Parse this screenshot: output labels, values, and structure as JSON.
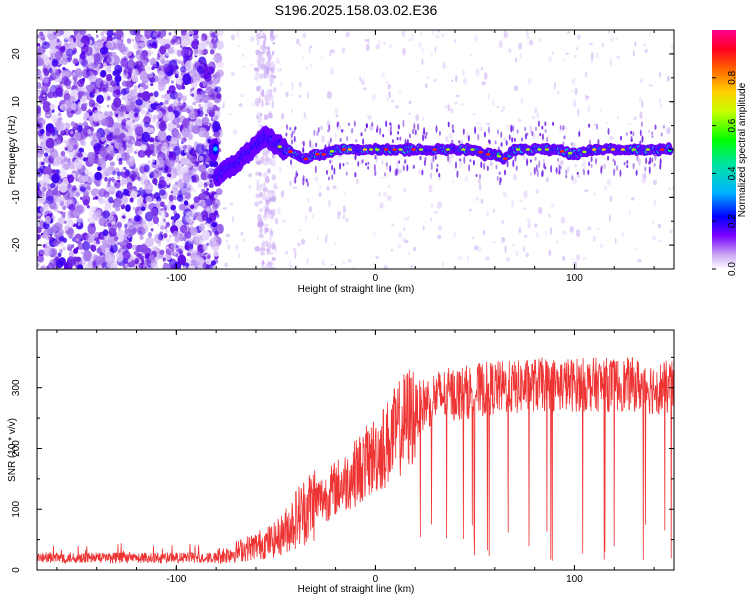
{
  "title": "S196.2025.158.03.02.E36",
  "chart_data": [
    {
      "type": "heatmap",
      "xlabel": "Height of straight line (km)",
      "ylabel": "Frequency (Hz)",
      "xlim": [
        -170,
        150
      ],
      "ylim": [
        -25,
        25
      ],
      "x_ticks": [
        -100,
        0,
        100
      ],
      "y_ticks": [
        -20,
        -10,
        0,
        10,
        20
      ],
      "colorbar": {
        "label": "Normalized spectral amplitude",
        "range": [
          0,
          1
        ],
        "ticks": [
          0.0,
          0.2,
          0.4,
          0.6,
          0.8
        ],
        "colormap": [
          "#ffffff",
          "#c9a6f3",
          "#6a00ff",
          "#0000ff",
          "#00c8ff",
          "#00ff00",
          "#ffff00",
          "#ff8000",
          "#ff0000",
          "#ff0080"
        ]
      },
      "ridge": {
        "description_points_x": [
          -80,
          -75,
          -70,
          -65,
          -60,
          -55,
          -50,
          -45,
          -40,
          -35,
          -30,
          -25,
          -20,
          -15,
          -10,
          0,
          20,
          40,
          50,
          55,
          60,
          65,
          70,
          80,
          90,
          100,
          110,
          120,
          130,
          140,
          145
        ],
        "description_points_y": [
          -6,
          -4,
          -3,
          -1,
          1,
          3,
          1,
          0,
          -1,
          -2,
          -1,
          -1,
          0,
          0,
          0,
          0,
          0,
          0,
          0,
          -1,
          -1,
          -2,
          0,
          0,
          0,
          -1,
          0,
          0,
          0,
          0,
          0
        ]
      }
    },
    {
      "type": "line",
      "xlabel": "Height of straight line (km)",
      "ylabel": "SNR (10 * v/v)",
      "xlim": [
        -170,
        150
      ],
      "ylim": [
        0,
        395
      ],
      "x_ticks": [
        -100,
        0,
        100
      ],
      "y_ticks": [
        0,
        100,
        200,
        300
      ],
      "series": [
        {
          "color": "#ee3333",
          "envelope_x": [
            -170,
            -150,
            -120,
            -100,
            -85,
            -75,
            -70,
            -65,
            -60,
            -55,
            -50,
            -45,
            -40,
            -35,
            -30,
            -25,
            -20,
            -15,
            -10,
            -5,
            0,
            5,
            10,
            15,
            20,
            25,
            30,
            40,
            50,
            60,
            70,
            80,
            90,
            100,
            110,
            120,
            130,
            140,
            145,
            150
          ],
          "envelope_mean": [
            20,
            20,
            20,
            20,
            22,
            25,
            30,
            35,
            40,
            45,
            50,
            65,
            85,
            100,
            115,
            120,
            135,
            145,
            160,
            175,
            190,
            205,
            225,
            245,
            260,
            275,
            285,
            290,
            295,
            300,
            300,
            305,
            305,
            305,
            305,
            305,
            305,
            300,
            300,
            300
          ]
        }
      ]
    }
  ]
}
